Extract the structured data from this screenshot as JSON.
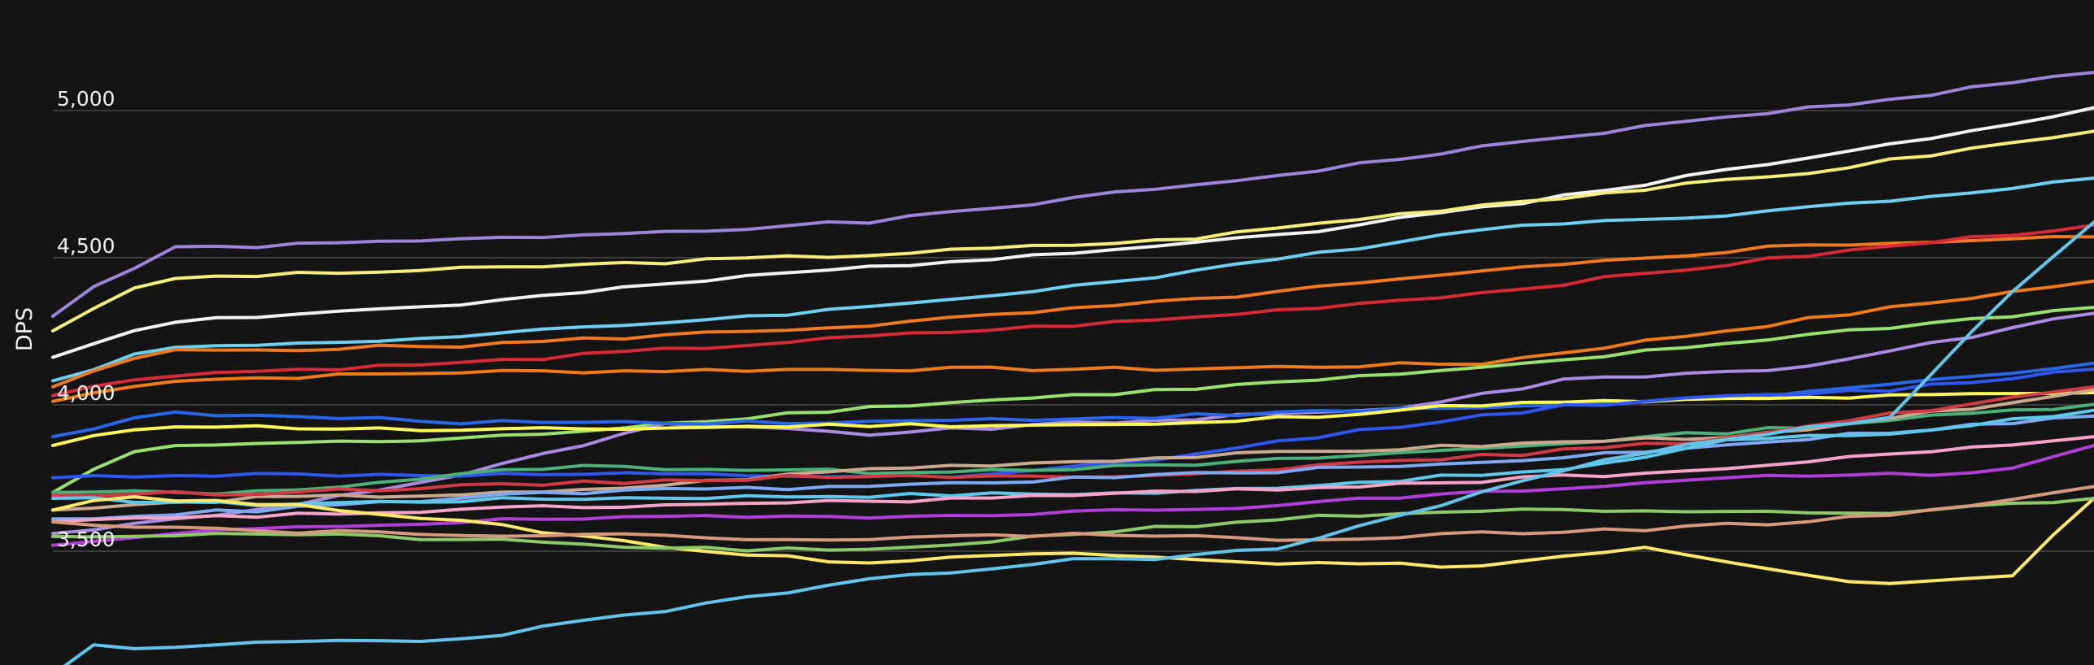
{
  "chart_data": {
    "type": "line",
    "title": "",
    "xlabel": "",
    "ylabel": "DPS",
    "ylim": [
      3050,
      5200
    ],
    "yticks": [
      {
        "value": 5000,
        "label": "5,000"
      },
      {
        "value": 4500,
        "label": "4,500"
      },
      {
        "value": 4000,
        "label": "4,000"
      },
      {
        "value": 3500,
        "label": "3,500"
      }
    ],
    "grid": true,
    "legend": "none",
    "x_points": 50,
    "series": [
      {
        "color": "#9b85d6",
        "start": 4300,
        "keys": [
          [
            0.02,
            4400
          ],
          [
            0.06,
            4530
          ],
          [
            0.2,
            4560
          ],
          [
            0.4,
            4620
          ],
          [
            0.6,
            4780
          ],
          [
            0.75,
            4920
          ],
          [
            0.9,
            5040
          ],
          [
            1.0,
            5130
          ]
        ]
      },
      {
        "color": "#f2f2f2",
        "start": 4160,
        "keys": [
          [
            0.05,
            4280
          ],
          [
            0.2,
            4340
          ],
          [
            0.35,
            4440
          ],
          [
            0.5,
            4520
          ],
          [
            0.62,
            4590
          ],
          [
            0.75,
            4720
          ],
          [
            0.88,
            4860
          ],
          [
            1.0,
            5010
          ]
        ]
      },
      {
        "color": "#f3ef7a",
        "start": 4250,
        "keys": [
          [
            0.03,
            4370
          ],
          [
            0.06,
            4430
          ],
          [
            0.2,
            4460
          ],
          [
            0.4,
            4510
          ],
          [
            0.55,
            4560
          ],
          [
            0.7,
            4680
          ],
          [
            0.85,
            4780
          ],
          [
            1.0,
            4930
          ]
        ]
      },
      {
        "color": "#6fd0ee",
        "start": 4080,
        "keys": [
          [
            0.05,
            4190
          ],
          [
            0.2,
            4230
          ],
          [
            0.4,
            4330
          ],
          [
            0.55,
            4440
          ],
          [
            0.7,
            4600
          ],
          [
            0.85,
            4660
          ],
          [
            1.0,
            4770
          ]
        ]
      },
      {
        "color": "#f07820",
        "start": 4060,
        "keys": [
          [
            0.05,
            4180
          ],
          [
            0.2,
            4200
          ],
          [
            0.4,
            4270
          ],
          [
            0.55,
            4350
          ],
          [
            0.7,
            4450
          ],
          [
            0.85,
            4540
          ],
          [
            1.0,
            4570
          ]
        ]
      },
      {
        "color": "#d42a3a",
        "start": 4030,
        "keys": [
          [
            0.05,
            4100
          ],
          [
            0.2,
            4140
          ],
          [
            0.4,
            4230
          ],
          [
            0.55,
            4290
          ],
          [
            0.7,
            4380
          ],
          [
            0.85,
            4500
          ],
          [
            1.0,
            4610
          ]
        ]
      },
      {
        "color": "#ef7a1a",
        "start": 4010,
        "keys": [
          [
            0.05,
            4080
          ],
          [
            0.2,
            4110
          ],
          [
            0.4,
            4120
          ],
          [
            0.55,
            4120
          ],
          [
            0.7,
            4140
          ],
          [
            0.85,
            4280
          ],
          [
            1.0,
            4420
          ]
        ]
      },
      {
        "color": "#9be06e",
        "start": 3700,
        "keys": [
          [
            0.03,
            3820
          ],
          [
            0.06,
            3860
          ],
          [
            0.2,
            3880
          ],
          [
            0.4,
            3990
          ],
          [
            0.55,
            4050
          ],
          [
            0.7,
            4120
          ],
          [
            0.85,
            4230
          ],
          [
            1.0,
            4330
          ]
        ]
      },
      {
        "color": "#a98be0",
        "start": 3560,
        "keys": [
          [
            0.1,
            3640
          ],
          [
            0.2,
            3760
          ],
          [
            0.3,
            3930
          ],
          [
            0.4,
            3900
          ],
          [
            0.55,
            3950
          ],
          [
            0.65,
            3980
          ],
          [
            0.75,
            4090
          ],
          [
            0.85,
            4120
          ],
          [
            1.0,
            4310
          ]
        ]
      },
      {
        "color": "#2a66e8",
        "start": 3890,
        "keys": [
          [
            0.05,
            3970
          ],
          [
            0.2,
            3940
          ],
          [
            0.4,
            3940
          ],
          [
            0.55,
            3960
          ],
          [
            0.7,
            3990
          ],
          [
            0.85,
            4030
          ],
          [
            1.0,
            4140
          ]
        ]
      },
      {
        "color": "#fbfb5a",
        "start": 3860,
        "keys": [
          [
            0.05,
            3930
          ],
          [
            0.2,
            3910
          ],
          [
            0.4,
            3930
          ],
          [
            0.55,
            3930
          ],
          [
            0.7,
            4000
          ],
          [
            0.85,
            4020
          ],
          [
            1.0,
            4040
          ]
        ]
      },
      {
        "color": "#2f57f0",
        "start": 3750,
        "keys": [
          [
            0.05,
            3760
          ],
          [
            0.3,
            3760
          ],
          [
            0.45,
            3750
          ],
          [
            0.55,
            3820
          ],
          [
            0.65,
            3920
          ],
          [
            0.75,
            4000
          ],
          [
            0.9,
            4050
          ],
          [
            1.0,
            4120
          ]
        ]
      },
      {
        "color": "#4cb07a",
        "start": 3700,
        "keys": [
          [
            0.1,
            3700
          ],
          [
            0.25,
            3790
          ],
          [
            0.4,
            3770
          ],
          [
            0.55,
            3790
          ],
          [
            0.7,
            3850
          ],
          [
            0.85,
            3920
          ],
          [
            1.0,
            4000
          ]
        ]
      },
      {
        "color": "#c9a98f",
        "start": 3640,
        "keys": [
          [
            0.1,
            3680
          ],
          [
            0.25,
            3700
          ],
          [
            0.4,
            3780
          ],
          [
            0.55,
            3820
          ],
          [
            0.7,
            3860
          ],
          [
            0.85,
            3900
          ],
          [
            1.0,
            4050
          ]
        ]
      },
      {
        "color": "#d03a46",
        "start": 3690,
        "keys": [
          [
            0.1,
            3700
          ],
          [
            0.25,
            3730
          ],
          [
            0.4,
            3760
          ],
          [
            0.5,
            3750
          ],
          [
            0.65,
            3800
          ],
          [
            0.8,
            3870
          ],
          [
            1.0,
            4060
          ]
        ]
      },
      {
        "color": "#7fa8f0",
        "start": 3610,
        "keys": [
          [
            0.1,
            3640
          ],
          [
            0.25,
            3700
          ],
          [
            0.4,
            3720
          ],
          [
            0.55,
            3760
          ],
          [
            0.7,
            3800
          ],
          [
            0.85,
            3880
          ],
          [
            1.0,
            3960
          ]
        ]
      },
      {
        "color": "#5ec8e8",
        "start": 3680,
        "keys": [
          [
            0.1,
            3660
          ],
          [
            0.25,
            3680
          ],
          [
            0.4,
            3690
          ],
          [
            0.55,
            3700
          ],
          [
            0.65,
            3740
          ],
          [
            0.75,
            3780
          ],
          [
            0.82,
            3880
          ],
          [
            0.9,
            3900
          ],
          [
            1.0,
            3980
          ]
        ]
      },
      {
        "color": "#f5a3c7",
        "start": 3600,
        "keys": [
          [
            0.1,
            3620
          ],
          [
            0.25,
            3650
          ],
          [
            0.4,
            3670
          ],
          [
            0.55,
            3700
          ],
          [
            0.7,
            3740
          ],
          [
            0.82,
            3780
          ],
          [
            1.0,
            3890
          ]
        ]
      },
      {
        "color": "#b13ed8",
        "start": 3520,
        "keys": [
          [
            0.1,
            3580
          ],
          [
            0.25,
            3610
          ],
          [
            0.4,
            3620
          ],
          [
            0.55,
            3640
          ],
          [
            0.7,
            3700
          ],
          [
            0.85,
            3760
          ],
          [
            0.95,
            3760
          ],
          [
            1.0,
            3860
          ]
        ]
      },
      {
        "color": "#ffe96a",
        "start": 3640,
        "keys": [
          [
            0.03,
            3690
          ],
          [
            0.15,
            3640
          ],
          [
            0.25,
            3560
          ],
          [
            0.32,
            3500
          ],
          [
            0.4,
            3460
          ],
          [
            0.5,
            3500
          ],
          [
            0.6,
            3460
          ],
          [
            0.7,
            3450
          ],
          [
            0.75,
            3490
          ],
          [
            0.78,
            3510
          ],
          [
            0.82,
            3460
          ],
          [
            0.88,
            3390
          ],
          [
            0.92,
            3400
          ],
          [
            0.96,
            3420
          ],
          [
            1.0,
            3680
          ]
        ]
      },
      {
        "color": "#8fc86a",
        "start": 3550,
        "keys": [
          [
            0.1,
            3560
          ],
          [
            0.2,
            3540
          ],
          [
            0.3,
            3510
          ],
          [
            0.4,
            3500
          ],
          [
            0.5,
            3560
          ],
          [
            0.6,
            3610
          ],
          [
            0.7,
            3640
          ],
          [
            0.8,
            3630
          ],
          [
            0.9,
            3630
          ],
          [
            1.0,
            3680
          ]
        ]
      },
      {
        "color": "#d39a80",
        "start": 3600,
        "keys": [
          [
            0.1,
            3570
          ],
          [
            0.2,
            3560
          ],
          [
            0.3,
            3550
          ],
          [
            0.4,
            3540
          ],
          [
            0.5,
            3560
          ],
          [
            0.6,
            3540
          ],
          [
            0.7,
            3560
          ],
          [
            0.8,
            3580
          ],
          [
            0.9,
            3620
          ],
          [
            1.0,
            3720
          ]
        ]
      },
      {
        "color": "#64c4e8",
        "start": 3080,
        "keys": [
          [
            0.01,
            3190
          ],
          [
            0.03,
            3160
          ],
          [
            0.06,
            3170
          ],
          [
            0.1,
            3190
          ],
          [
            0.2,
            3200
          ],
          [
            0.3,
            3300
          ],
          [
            0.4,
            3400
          ],
          [
            0.5,
            3470
          ],
          [
            0.55,
            3480
          ],
          [
            0.6,
            3510
          ],
          [
            0.66,
            3620
          ],
          [
            0.72,
            3740
          ],
          [
            0.8,
            3870
          ],
          [
            0.9,
            3950
          ],
          [
            0.95,
            4320
          ],
          [
            1.0,
            4620
          ]
        ]
      }
    ]
  }
}
